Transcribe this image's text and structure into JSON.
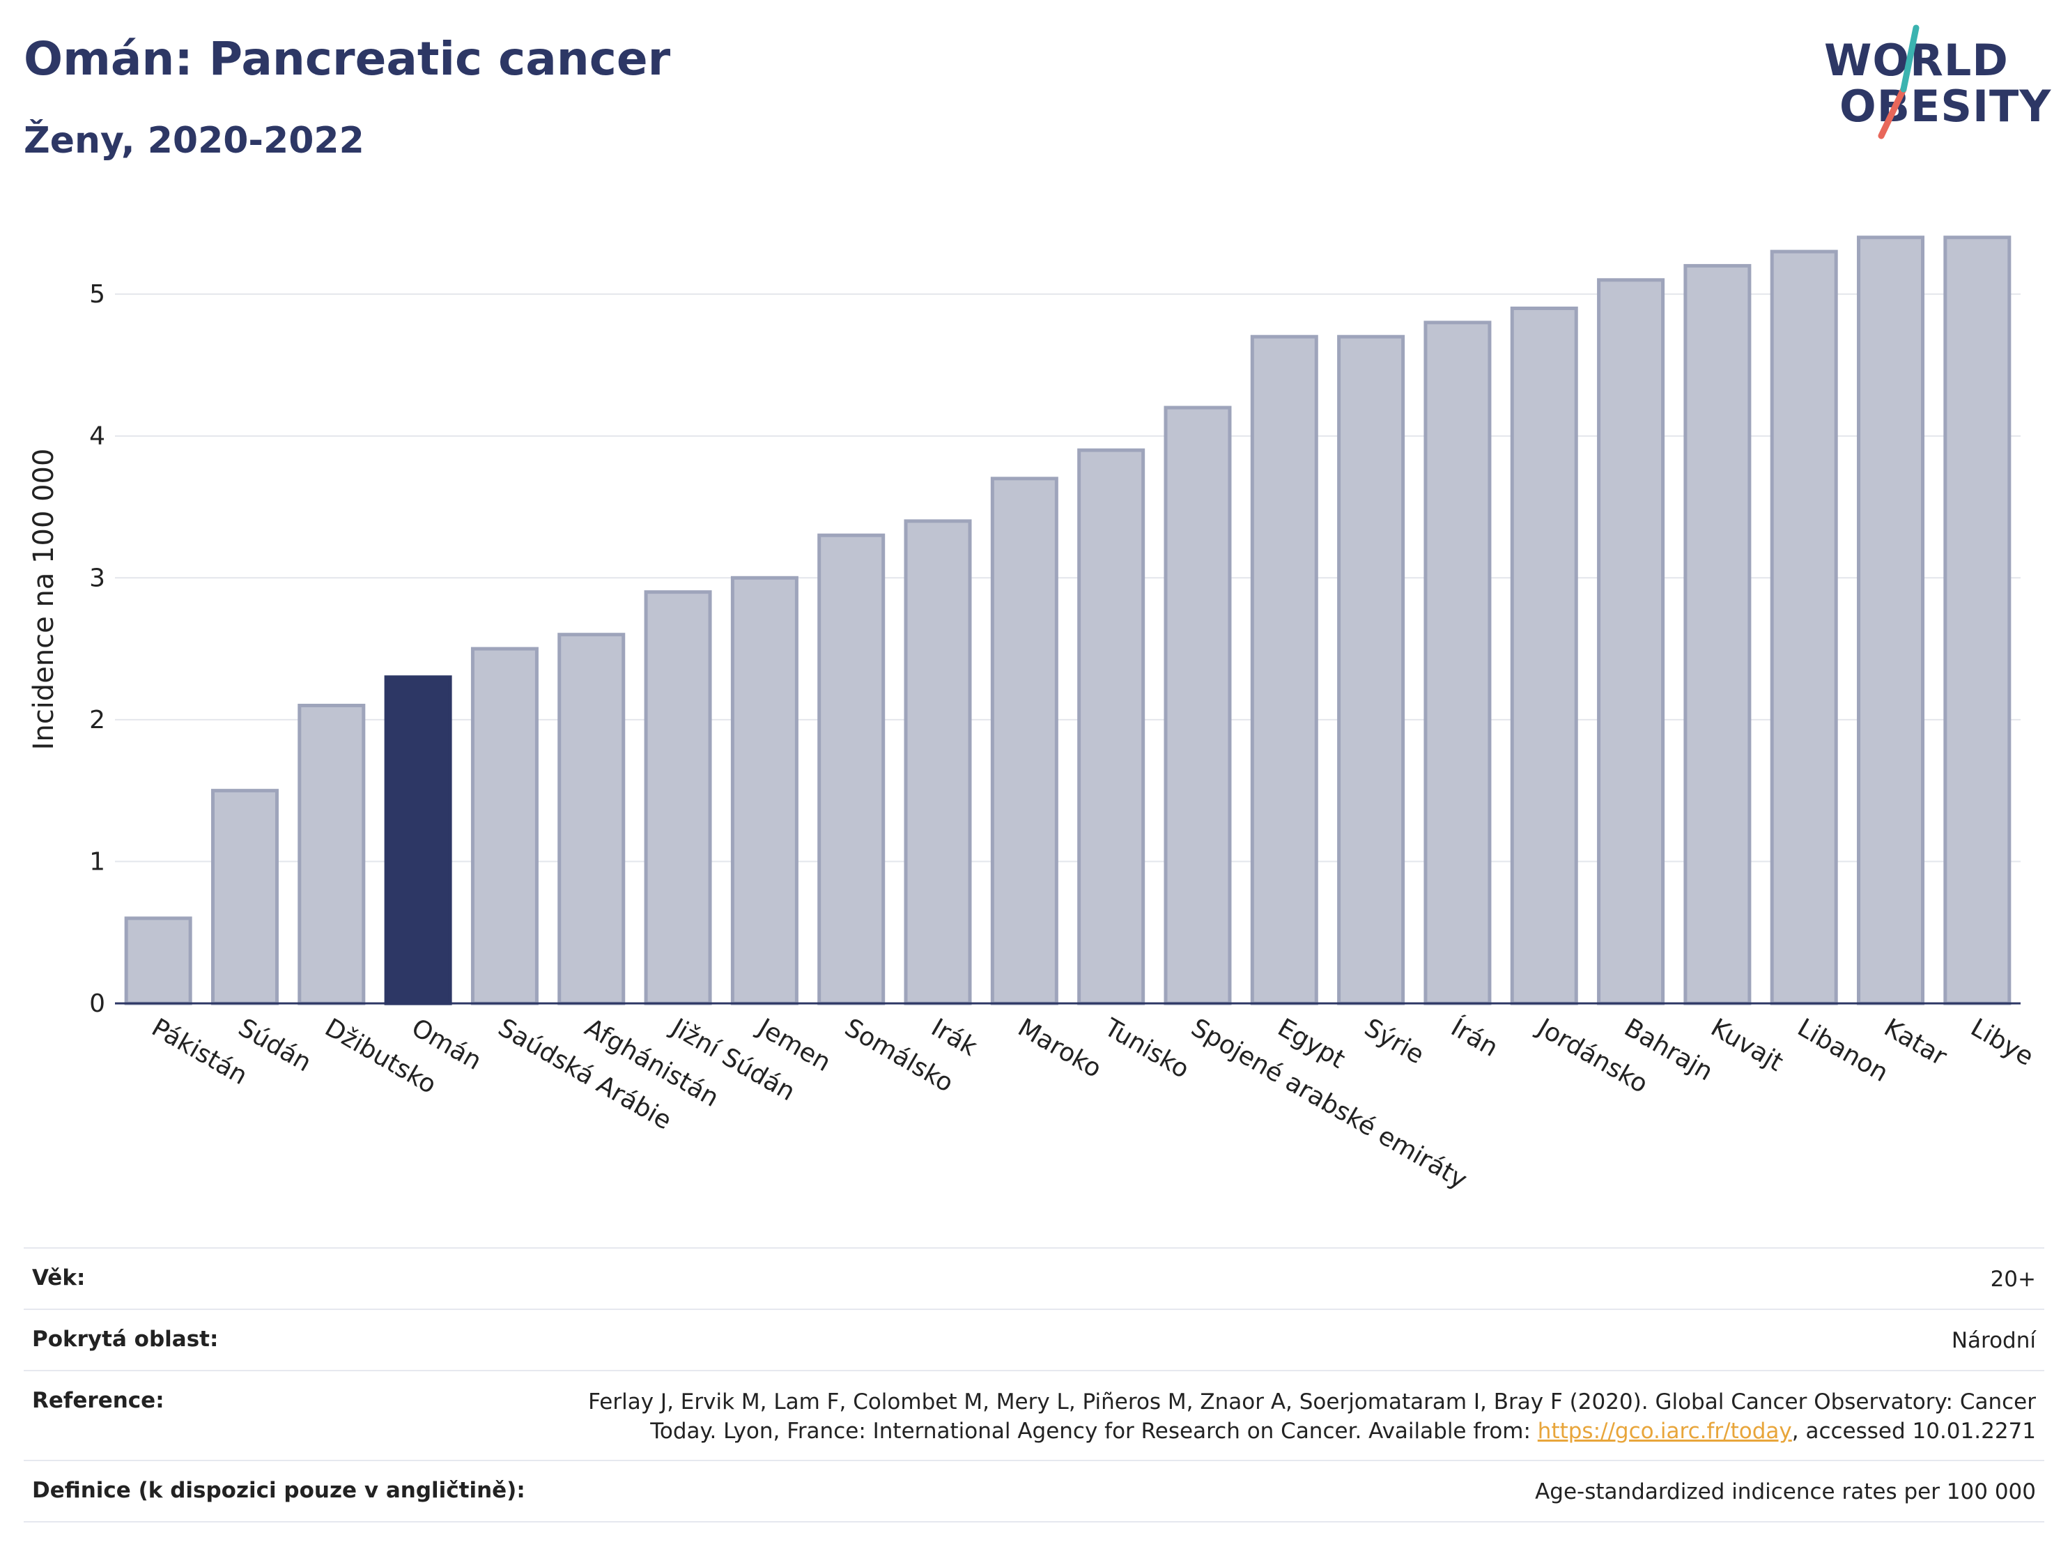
{
  "header": {
    "title": "Omán: Pancreatic cancer",
    "subtitle": "Ženy, 2020-2022"
  },
  "logo": {
    "line1": "WORLD",
    "line2": "OBESITY"
  },
  "chart_data": {
    "type": "bar",
    "ylabel": "Incidence na 100 000",
    "ylim": [
      0,
      5.6
    ],
    "yticks": [
      0,
      1,
      2,
      3,
      4,
      5
    ],
    "grid": true,
    "highlight": "Omán",
    "colors": {
      "bar": "#bfc3d1",
      "bar_edge": "#9ea4bb",
      "highlight": "#2d3765"
    },
    "categories": [
      "Pákistán",
      "Súdán",
      "Džibutsko",
      "Omán",
      "Saúdská Arábie",
      "Afghánistán",
      "Jižní Súdán",
      "Jemen",
      "Somálsko",
      "Irák",
      "Maroko",
      "Tunisko",
      "Spojené arabské emiráty",
      "Egypt",
      "Sýrie",
      "Írán",
      "Jordánsko",
      "Bahrajn",
      "Kuvajt",
      "Libanon",
      "Katar",
      "Libye"
    ],
    "values": [
      0.6,
      1.5,
      2.1,
      2.3,
      2.5,
      2.6,
      2.9,
      3.0,
      3.3,
      3.4,
      3.7,
      3.9,
      4.2,
      4.7,
      4.7,
      4.8,
      4.9,
      5.1,
      5.2,
      5.3,
      5.4,
      5.4
    ]
  },
  "info": {
    "age_label": "Věk:",
    "age_value": "20+",
    "area_label": "Pokrytá oblast:",
    "area_value": "Národní",
    "ref_label": "Reference:",
    "ref_text_before": "Ferlay J, Ervik M, Lam F, Colombet M, Mery L, Piñeros M, Znaor A, Soerjomataram I, Bray F (2020). Global Cancer Observatory: Cancer Today. Lyon, France: International Agency for Research on Cancer. Available from: ",
    "ref_link": "https://gco.iarc.fr/today",
    "ref_text_after": ", accessed 10.01.2271",
    "def_label": "Definice (k dispozici pouze v angličtině):",
    "def_value": "Age-standardized indicence rates per 100 000"
  }
}
